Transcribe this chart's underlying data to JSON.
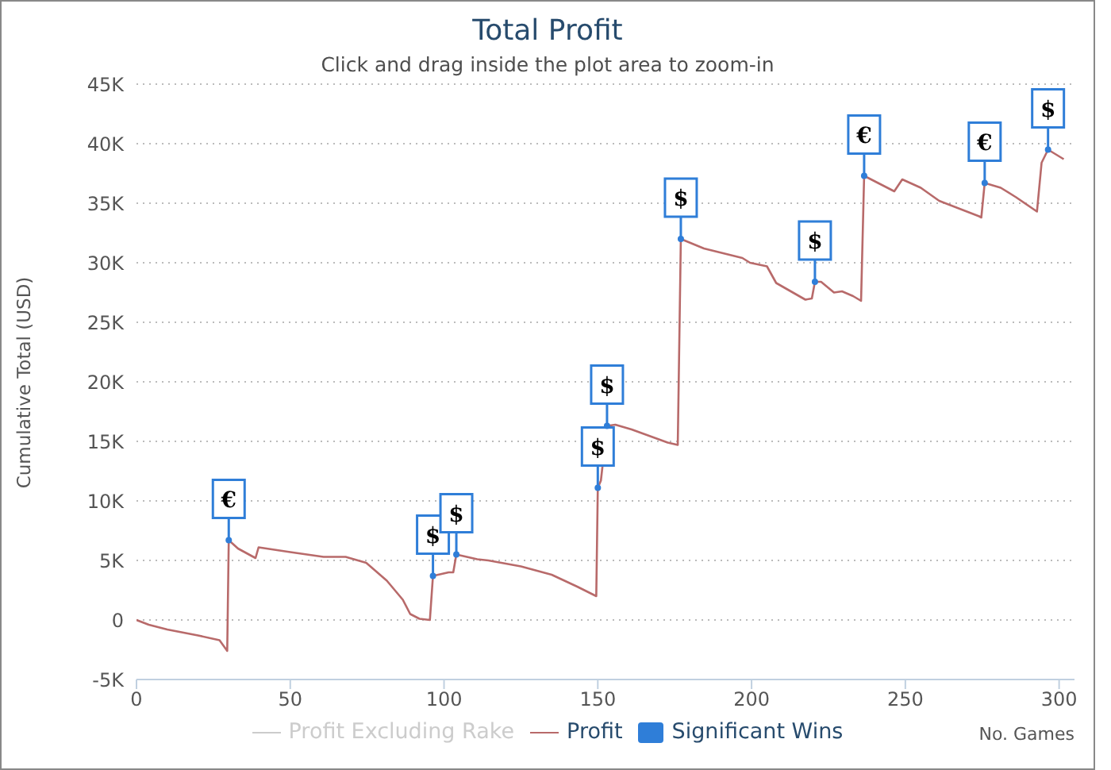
{
  "chart_data": {
    "type": "line",
    "title": "Total Profit",
    "subtitle": "Click and drag inside the plot area to zoom-in",
    "xlabel": "No. Games",
    "ylabel": "Cumulative Total (USD)",
    "xlim": [
      0,
      305
    ],
    "xticks": [
      0,
      50,
      100,
      150,
      200,
      250,
      300
    ],
    "ylim": [
      -5000,
      45000
    ],
    "yticks": [
      {
        "value": -5000,
        "label": "-5K"
      },
      0,
      {
        "value": 5000,
        "label": "5K"
      },
      {
        "value": 10000,
        "label": "10K"
      },
      {
        "value": 15000,
        "label": "15K"
      },
      {
        "value": 20000,
        "label": "20K"
      },
      {
        "value": 25000,
        "label": "25K"
      },
      {
        "value": 30000,
        "label": "30K"
      },
      {
        "value": 35000,
        "label": "35K"
      },
      {
        "value": 40000,
        "label": "40K"
      },
      {
        "value": 45000,
        "label": "45K"
      }
    ],
    "grid": "y",
    "legend": "bottom",
    "line_style": "solid",
    "series": [
      {
        "name": "Profit Excluding Rake",
        "color": "#cccccc"
      },
      {
        "name": "Profit",
        "color": "#b86a6a",
        "x": [
          0,
          4,
          10,
          20,
          27,
          29.5,
          30,
          33,
          38.7,
          39.7,
          50,
          60.8,
          68,
          74.7,
          81.4,
          86.6,
          89,
          92,
          95.4,
          96.4,
          101.5,
          103,
          104,
          110.8,
          114.4,
          125,
          135,
          143.3,
          149.5,
          150,
          151,
          153,
          155.7,
          161,
          172.7,
          176,
          177,
          184.5,
          197,
          199.5,
          205,
          208,
          217.5,
          219.6,
          220.6,
          222.6,
          226.8,
          229.4,
          233,
          235.6,
          236.6,
          246.4,
          249,
          255,
          261,
          274,
          274.7,
          275.8,
          281,
          286,
          292.8,
          294.3,
          296.4,
          301.5
        ],
        "values": [
          0,
          -400,
          -800,
          -1300,
          -1700,
          -2600,
          6700,
          6000,
          5200,
          6100,
          5700,
          5300,
          5300,
          4800,
          3300,
          1700,
          500,
          100,
          0,
          3700,
          4000,
          4000,
          5500,
          5100,
          5000,
          4500,
          3800,
          2800,
          2000,
          11100,
          11700,
          16300,
          16400,
          16000,
          14900,
          14700,
          32000,
          31200,
          30400,
          30000,
          29700,
          28300,
          26900,
          27000,
          28400,
          28400,
          27500,
          27600,
          27200,
          26800,
          37300,
          36000,
          37000,
          36300,
          35200,
          33900,
          33800,
          36700,
          36300,
          35500,
          34300,
          38400,
          39500,
          38700
        ]
      },
      {
        "name": "Significant Wins",
        "type": "scatter",
        "color": "#2f7ed8",
        "x": [
          30,
          96.4,
          104,
          150,
          153,
          177,
          220.6,
          236.6,
          275.8,
          296.4
        ],
        "values": [
          6700,
          3700,
          5500,
          11100,
          16300,
          32000,
          28400,
          37300,
          36700,
          39500
        ],
        "value_labels": [
          "€",
          "$",
          "$",
          "$",
          "$",
          "$",
          "$",
          "€",
          "€",
          "$"
        ]
      }
    ]
  }
}
